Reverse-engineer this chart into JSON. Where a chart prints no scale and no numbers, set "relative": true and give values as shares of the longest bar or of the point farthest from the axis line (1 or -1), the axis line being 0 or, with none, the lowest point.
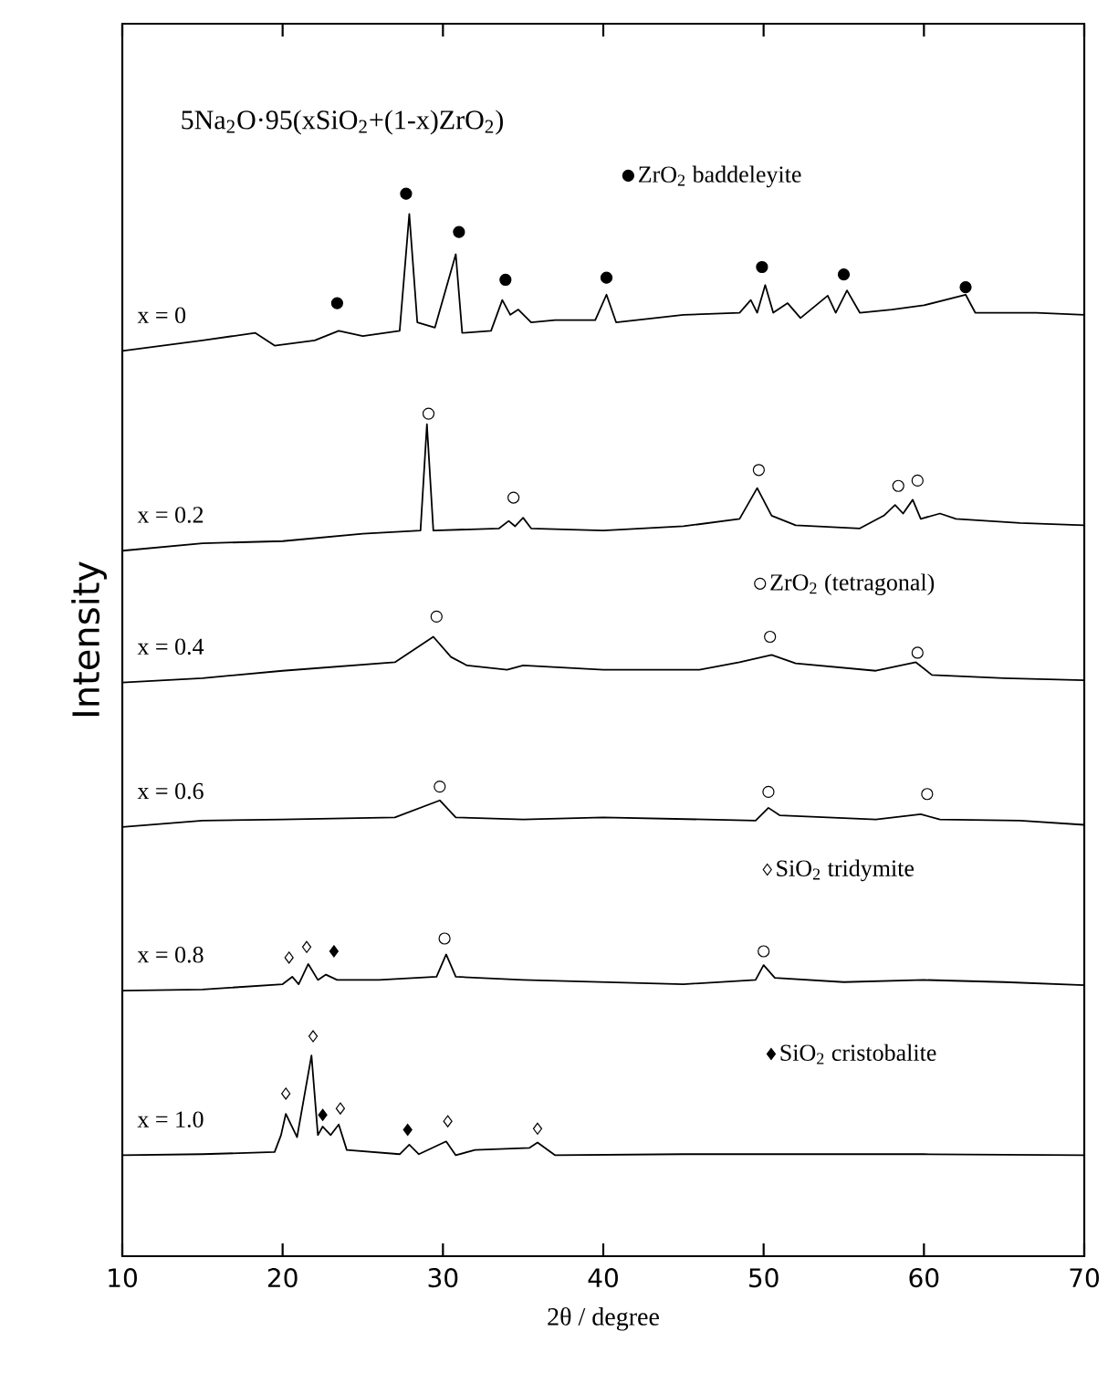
{
  "chart_data": {
    "type": "line",
    "relative": true,
    "title": "5Na$_{2}$O·95(xSiO$_{2}$+(1-x)ZrO$_{2}$)",
    "xlabel": "2θ / degree",
    "ylabel": "Intensity",
    "xlim": [
      10,
      70
    ],
    "xticks": [
      10,
      20,
      30,
      40,
      50,
      60,
      70
    ],
    "grid": false,
    "legend": "right",
    "line_style": "solid",
    "series": [
      {
        "name": "x = 0",
        "color": "#000000",
        "x": [
          10,
          15,
          18.3,
          19.5,
          22,
          23.5,
          25,
          27.3,
          27.9,
          28.4,
          29.5,
          30.8,
          31.2,
          33,
          33.7,
          34.2,
          34.7,
          35.5,
          37,
          39.5,
          40.2,
          40.8,
          45,
          48.5,
          49.2,
          49.6,
          50.1,
          50.6,
          51.5,
          52.3,
          54,
          54.5,
          55.2,
          56,
          58,
          60,
          62.6,
          63.2,
          67,
          70
        ],
        "values": [
          0.852,
          0.862,
          0.869,
          0.857,
          0.862,
          0.871,
          0.866,
          0.871,
          0.981,
          0.879,
          0.874,
          0.943,
          0.869,
          0.871,
          0.9,
          0.886,
          0.891,
          0.879,
          0.881,
          0.881,
          0.905,
          0.879,
          0.886,
          0.888,
          0.9,
          0.888,
          0.914,
          0.888,
          0.897,
          0.883,
          0.904,
          0.888,
          0.909,
          0.888,
          0.891,
          0.895,
          0.905,
          0.888,
          0.888,
          0.886
        ]
      },
      {
        "name": "x = 0.2",
        "color": "#000000",
        "x": [
          10,
          15,
          20,
          25,
          28.6,
          29.0,
          29.4,
          33.5,
          34.1,
          34.5,
          35.0,
          35.5,
          40,
          45,
          48.5,
          49.6,
          50.5,
          52,
          56,
          57.5,
          58.2,
          58.7,
          59.3,
          59.8,
          61,
          62,
          66,
          70
        ],
        "values": [
          0.664,
          0.671,
          0.673,
          0.68,
          0.683,
          0.783,
          0.683,
          0.685,
          0.692,
          0.687,
          0.695,
          0.685,
          0.683,
          0.687,
          0.694,
          0.723,
          0.697,
          0.688,
          0.685,
          0.697,
          0.707,
          0.699,
          0.712,
          0.694,
          0.699,
          0.694,
          0.69,
          0.688
        ]
      },
      {
        "name": "x = 0.4",
        "color": "#000000",
        "x": [
          10,
          15,
          20,
          27,
          29.4,
          30.5,
          31.5,
          34,
          35,
          40,
          46,
          48.5,
          50.5,
          52,
          57,
          59.5,
          60.5,
          65,
          70
        ],
        "values": [
          0.54,
          0.544,
          0.551,
          0.559,
          0.583,
          0.564,
          0.556,
          0.552,
          0.556,
          0.552,
          0.552,
          0.559,
          0.566,
          0.558,
          0.551,
          0.559,
          0.547,
          0.544,
          0.542
        ]
      },
      {
        "name": "x = 0.6",
        "color": "#000000",
        "x": [
          10,
          15,
          20,
          27,
          29.8,
          30.8,
          35,
          40,
          49.5,
          50.3,
          51,
          57,
          59.8,
          61,
          66,
          70
        ],
        "values": [
          0.404,
          0.41,
          0.411,
          0.413,
          0.429,
          0.413,
          0.411,
          0.413,
          0.41,
          0.422,
          0.415,
          0.411,
          0.416,
          0.411,
          0.41,
          0.406
        ]
      },
      {
        "name": "x = 0.8",
        "color": "#000000",
        "x": [
          10,
          15,
          20,
          20.6,
          21.0,
          21.6,
          22.2,
          22.7,
          23.4,
          26,
          29.6,
          30.2,
          30.8,
          35,
          45,
          49.5,
          50.0,
          50.7,
          55,
          60,
          65,
          70
        ],
        "values": [
          0.25,
          0.251,
          0.256,
          0.263,
          0.256,
          0.275,
          0.26,
          0.265,
          0.26,
          0.26,
          0.263,
          0.284,
          0.263,
          0.26,
          0.256,
          0.26,
          0.274,
          0.262,
          0.258,
          0.26,
          0.258,
          0.255
        ]
      },
      {
        "name": "x = 1.0",
        "color": "#000000",
        "x": [
          10,
          15,
          19.5,
          19.9,
          20.2,
          20.9,
          21.8,
          22.2,
          22.5,
          23.0,
          23.5,
          24.0,
          27.3,
          27.9,
          28.5,
          30.2,
          30.8,
          32,
          35.4,
          35.9,
          37,
          45,
          55,
          60,
          70
        ],
        "values": [
          0.095,
          0.096,
          0.098,
          0.114,
          0.134,
          0.112,
          0.189,
          0.114,
          0.122,
          0.114,
          0.124,
          0.1,
          0.096,
          0.105,
          0.096,
          0.108,
          0.095,
          0.1,
          0.102,
          0.107,
          0.095,
          0.096,
          0.096,
          0.096,
          0.095
        ]
      },
      {
        "name": "ZrO$_{2}$ baddeleyite",
        "type": "scatter",
        "marker": "circle",
        "color": "#000000",
        "x": [
          23.4,
          27.7,
          31.0,
          33.9,
          40.2,
          49.9,
          55.0,
          62.6
        ],
        "values": [
          0.897,
          1.0,
          0.964,
          0.919,
          0.921,
          0.931,
          0.924,
          0.912
        ]
      },
      {
        "name": "ZrO$_{2}$ (tetragonal)",
        "type": "scatter",
        "marker": "circle",
        "color": "#ffffff",
        "x": [
          29.1,
          34.4,
          49.7,
          58.4,
          59.6,
          29.6,
          50.4,
          59.6,
          29.8,
          50.3,
          60.2,
          30.1,
          50.0
        ],
        "values": [
          0.793,
          0.714,
          0.74,
          0.725,
          0.73,
          0.602,
          0.583,
          0.568,
          0.442,
          0.437,
          0.435,
          0.299,
          0.287
        ]
      },
      {
        "name": "SiO$_{2}$ tridymite",
        "type": "scatter",
        "marker": "diamond",
        "color": "#ffffff",
        "x": [
          20.4,
          21.5,
          20.2,
          21.9,
          23.6,
          30.3,
          35.9
        ],
        "values": [
          0.281,
          0.291,
          0.153,
          0.207,
          0.139,
          0.127,
          0.12
        ]
      },
      {
        "name": "SiO$_{2}$ cristobalite",
        "type": "scatter",
        "marker": "diamond",
        "color": "#000000",
        "x": [
          23.2,
          22.5,
          27.8
        ],
        "values": [
          0.287,
          0.133,
          0.119
        ]
      }
    ]
  }
}
